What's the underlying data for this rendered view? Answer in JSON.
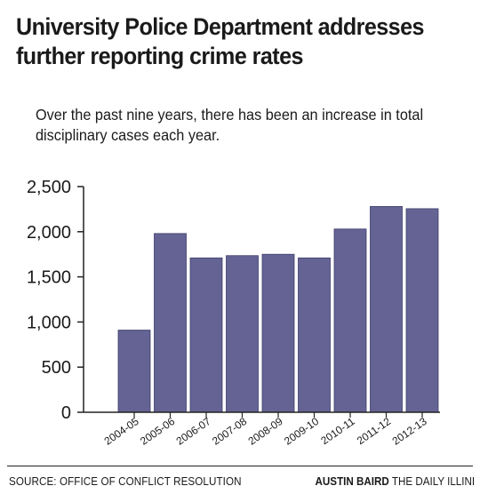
{
  "headline": "University Police Department addresses further reporting crime rates",
  "subtitle": "Over the past nine years, there has been an increase in total disciplinary cases each year.",
  "footer": {
    "source": "SOURCE: OFFICE OF CONFLICT RESOLUTION",
    "author": "AUSTIN BAIRD",
    "publication": "THE DAILY ILLINI"
  },
  "colors": {
    "bar": "#646394",
    "bar_edge": "#3f3e6e",
    "axis": "#222222"
  },
  "chart_data": {
    "type": "bar",
    "title": "",
    "xlabel": "",
    "ylabel": "",
    "categories": [
      "2004-05",
      "2005-06",
      "2006-07",
      "2007-08",
      "2008-09",
      "2009-10",
      "2010-11",
      "2011-12",
      "2012-13"
    ],
    "values": [
      910,
      1980,
      1710,
      1735,
      1750,
      1710,
      2030,
      2280,
      2255
    ],
    "ylim": [
      0,
      2500
    ],
    "yticks": [
      0,
      500,
      1000,
      1500,
      2000,
      2500
    ],
    "ytick_labels": [
      "0",
      "500",
      "1,000",
      "1,500",
      "2,000",
      "2,500"
    ],
    "grid": false,
    "legend": "none"
  }
}
